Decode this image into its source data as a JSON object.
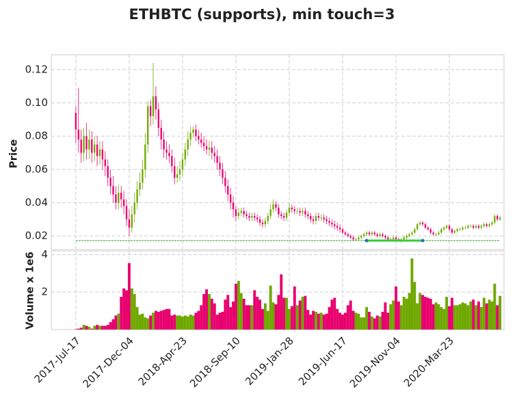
{
  "chart_data": {
    "type": "candlestick",
    "title": "ETHBTC (supports), min touch=3",
    "ylabel": "Price",
    "volume_label": "Volume x 1e6",
    "grid": true,
    "up_color": "#6fa800",
    "down_color": "#e8006e",
    "xlim": [
      -9.2,
      160.5
    ],
    "xticks": [
      {
        "value": 0,
        "label": "2017-Jul-17"
      },
      {
        "value": 20,
        "label": "2017-Dec-04"
      },
      {
        "value": 40,
        "label": "2018-Apr-23"
      },
      {
        "value": 60,
        "label": "2018-Sep-10"
      },
      {
        "value": 80,
        "label": "2019-Jan-28"
      },
      {
        "value": 100,
        "label": "2019-Jun-17"
      },
      {
        "value": 120,
        "label": "2019-Nov-04"
      },
      {
        "value": 140,
        "label": "2020-Mar-23"
      }
    ],
    "ylim": [
      0.0118,
      0.129
    ],
    "yticks": [
      0.02,
      0.04,
      0.06,
      0.08,
      {
        "value": 0.1,
        "label": "0.10"
      },
      0.12
    ],
    "volume_ylim": [
      0,
      4.2
    ],
    "volume_yticks": [
      2,
      4
    ],
    "open": [
      0.094,
      0.084,
      0.078,
      0.07,
      0.08,
      0.072,
      0.078,
      0.07,
      0.075,
      0.068,
      0.072,
      0.066,
      0.062,
      0.055,
      0.05,
      0.045,
      0.04,
      0.046,
      0.042,
      0.038,
      0.03,
      0.025,
      0.033,
      0.04,
      0.048,
      0.052,
      0.06,
      0.075,
      0.098,
      0.092,
      0.104,
      0.096,
      0.085,
      0.078,
      0.072,
      0.07,
      0.068,
      0.062,
      0.055,
      0.057,
      0.06,
      0.066,
      0.072,
      0.078,
      0.082,
      0.084,
      0.08,
      0.078,
      0.076,
      0.074,
      0.072,
      0.073,
      0.07,
      0.068,
      0.064,
      0.06,
      0.055,
      0.05,
      0.045,
      0.04,
      0.036,
      0.032,
      0.034,
      0.035,
      0.033,
      0.032,
      0.031,
      0.032,
      0.031,
      0.03,
      0.028,
      0.027,
      0.029,
      0.032,
      0.036,
      0.039,
      0.037,
      0.033,
      0.032,
      0.031,
      0.034,
      0.037,
      0.036,
      0.035,
      0.035,
      0.034,
      0.035,
      0.033,
      0.032,
      0.03,
      0.029,
      0.032,
      0.031,
      0.031,
      0.03,
      0.029,
      0.028,
      0.027,
      0.026,
      0.025,
      0.024,
      0.022,
      0.021,
      0.02,
      0.019,
      0.018,
      0.018,
      0.019,
      0.02,
      0.021,
      0.022,
      0.021,
      0.022,
      0.021,
      0.02,
      0.021,
      0.02,
      0.019,
      0.018,
      0.018,
      0.019,
      0.018,
      0.017,
      0.018,
      0.019,
      0.02,
      0.021,
      0.022,
      0.024,
      0.027,
      0.028,
      0.027,
      0.025,
      0.024,
      0.022,
      0.021,
      0.021,
      0.022,
      0.024,
      0.025,
      0.026,
      0.024,
      0.022,
      0.023,
      0.024,
      0.024,
      0.025,
      0.025,
      0.026,
      0.026,
      0.025,
      0.026,
      0.025,
      0.026,
      0.027,
      0.026,
      0.027,
      0.028,
      0.032,
      0.03
    ],
    "high": [
      0.098,
      0.109,
      0.084,
      0.085,
      0.088,
      0.084,
      0.083,
      0.08,
      0.08,
      0.077,
      0.077,
      0.071,
      0.066,
      0.06,
      0.056,
      0.05,
      0.051,
      0.05,
      0.047,
      0.042,
      0.036,
      0.038,
      0.046,
      0.053,
      0.058,
      0.066,
      0.082,
      0.101,
      0.102,
      0.124,
      0.11,
      0.1,
      0.09,
      0.083,
      0.077,
      0.075,
      0.072,
      0.067,
      0.062,
      0.065,
      0.07,
      0.076,
      0.083,
      0.086,
      0.086,
      0.087,
      0.084,
      0.082,
      0.08,
      0.078,
      0.077,
      0.077,
      0.074,
      0.072,
      0.068,
      0.064,
      0.059,
      0.054,
      0.049,
      0.044,
      0.038,
      0.037,
      0.037,
      0.037,
      0.035,
      0.034,
      0.034,
      0.034,
      0.033,
      0.032,
      0.03,
      0.031,
      0.034,
      0.039,
      0.042,
      0.041,
      0.039,
      0.035,
      0.034,
      0.036,
      0.04,
      0.039,
      0.038,
      0.037,
      0.037,
      0.037,
      0.037,
      0.035,
      0.034,
      0.032,
      0.034,
      0.034,
      0.033,
      0.033,
      0.032,
      0.031,
      0.03,
      0.029,
      0.028,
      0.027,
      0.025,
      0.023,
      0.022,
      0.021,
      0.02,
      0.019,
      0.02,
      0.021,
      0.022,
      0.023,
      0.023,
      0.023,
      0.023,
      0.022,
      0.022,
      0.022,
      0.021,
      0.02,
      0.019,
      0.02,
      0.02,
      0.019,
      0.019,
      0.02,
      0.021,
      0.022,
      0.023,
      0.025,
      0.028,
      0.029,
      0.029,
      0.028,
      0.026,
      0.025,
      0.023,
      0.022,
      0.023,
      0.025,
      0.026,
      0.027,
      0.027,
      0.025,
      0.024,
      0.025,
      0.025,
      0.026,
      0.026,
      0.027,
      0.027,
      0.027,
      0.027,
      0.027,
      0.027,
      0.028,
      0.028,
      0.028,
      0.029,
      0.033,
      0.033,
      0.032
    ],
    "low": [
      0.076,
      0.07,
      0.064,
      0.065,
      0.066,
      0.066,
      0.064,
      0.065,
      0.062,
      0.063,
      0.06,
      0.056,
      0.05,
      0.045,
      0.04,
      0.036,
      0.036,
      0.037,
      0.033,
      0.026,
      0.02,
      0.022,
      0.028,
      0.036,
      0.044,
      0.048,
      0.055,
      0.07,
      0.086,
      0.087,
      0.09,
      0.08,
      0.072,
      0.067,
      0.066,
      0.064,
      0.058,
      0.051,
      0.052,
      0.053,
      0.056,
      0.062,
      0.068,
      0.074,
      0.079,
      0.077,
      0.075,
      0.073,
      0.071,
      0.069,
      0.068,
      0.066,
      0.064,
      0.06,
      0.056,
      0.051,
      0.046,
      0.041,
      0.036,
      0.031,
      0.029,
      0.03,
      0.032,
      0.031,
      0.03,
      0.029,
      0.029,
      0.029,
      0.028,
      0.026,
      0.025,
      0.025,
      0.027,
      0.03,
      0.034,
      0.035,
      0.031,
      0.03,
      0.029,
      0.029,
      0.032,
      0.034,
      0.033,
      0.033,
      0.032,
      0.032,
      0.031,
      0.03,
      0.028,
      0.027,
      0.027,
      0.029,
      0.029,
      0.028,
      0.027,
      0.026,
      0.025,
      0.024,
      0.023,
      0.022,
      0.021,
      0.02,
      0.019,
      0.018,
      0.017,
      0.017,
      0.017,
      0.018,
      0.019,
      0.02,
      0.02,
      0.02,
      0.02,
      0.019,
      0.019,
      0.019,
      0.018,
      0.017,
      0.017,
      0.017,
      0.017,
      0.017,
      0.016,
      0.017,
      0.018,
      0.019,
      0.02,
      0.021,
      0.023,
      0.026,
      0.026,
      0.024,
      0.023,
      0.021,
      0.02,
      0.02,
      0.02,
      0.021,
      0.023,
      0.024,
      0.023,
      0.021,
      0.021,
      0.022,
      0.023,
      0.023,
      0.024,
      0.024,
      0.025,
      0.024,
      0.024,
      0.024,
      0.024,
      0.025,
      0.025,
      0.025,
      0.026,
      0.027,
      0.029,
      0.029
    ],
    "close": [
      0.084,
      0.078,
      0.07,
      0.08,
      0.072,
      0.078,
      0.07,
      0.075,
      0.068,
      0.072,
      0.066,
      0.062,
      0.055,
      0.05,
      0.045,
      0.04,
      0.046,
      0.042,
      0.038,
      0.03,
      0.025,
      0.033,
      0.04,
      0.048,
      0.052,
      0.06,
      0.075,
      0.098,
      0.092,
      0.104,
      0.096,
      0.085,
      0.078,
      0.072,
      0.07,
      0.068,
      0.062,
      0.055,
      0.057,
      0.06,
      0.066,
      0.072,
      0.078,
      0.082,
      0.084,
      0.08,
      0.078,
      0.076,
      0.074,
      0.072,
      0.073,
      0.07,
      0.068,
      0.064,
      0.06,
      0.055,
      0.05,
      0.045,
      0.04,
      0.036,
      0.032,
      0.034,
      0.035,
      0.033,
      0.032,
      0.031,
      0.032,
      0.031,
      0.03,
      0.028,
      0.027,
      0.029,
      0.032,
      0.036,
      0.039,
      0.037,
      0.033,
      0.032,
      0.031,
      0.034,
      0.037,
      0.036,
      0.035,
      0.035,
      0.034,
      0.035,
      0.033,
      0.032,
      0.03,
      0.029,
      0.032,
      0.031,
      0.031,
      0.03,
      0.029,
      0.028,
      0.027,
      0.026,
      0.025,
      0.024,
      0.022,
      0.021,
      0.02,
      0.019,
      0.018,
      0.018,
      0.019,
      0.02,
      0.021,
      0.022,
      0.021,
      0.022,
      0.021,
      0.02,
      0.021,
      0.02,
      0.019,
      0.018,
      0.018,
      0.019,
      0.018,
      0.017,
      0.018,
      0.019,
      0.02,
      0.021,
      0.022,
      0.024,
      0.027,
      0.028,
      0.027,
      0.025,
      0.024,
      0.022,
      0.021,
      0.021,
      0.022,
      0.024,
      0.025,
      0.026,
      0.024,
      0.022,
      0.023,
      0.024,
      0.024,
      0.025,
      0.025,
      0.026,
      0.026,
      0.025,
      0.026,
      0.025,
      0.026,
      0.027,
      0.026,
      0.027,
      0.028,
      0.032,
      0.03,
      0.031
    ],
    "volume": [
      0.02,
      0.05,
      0.1,
      0.25,
      0.2,
      0.15,
      0.05,
      0.2,
      0.25,
      0.2,
      0.2,
      0.2,
      0.25,
      0.4,
      0.55,
      0.75,
      0.85,
      1.75,
      2.2,
      2.1,
      3.55,
      2.2,
      1.9,
      1.2,
      0.8,
      0.85,
      0.65,
      0.6,
      0.75,
      0.9,
      1.0,
      0.95,
      1.0,
      1.05,
      1.1,
      1.1,
      0.75,
      0.8,
      0.75,
      0.75,
      0.7,
      0.75,
      0.7,
      0.8,
      0.75,
      0.9,
      1.0,
      1.3,
      1.9,
      2.15,
      1.9,
      1.65,
      1.4,
      0.8,
      0.9,
      0.95,
      1.6,
      1.85,
      1.2,
      1.5,
      2.45,
      2.6,
      1.95,
      1.65,
      1.3,
      1.3,
      1.3,
      2.1,
      1.75,
      1.6,
      1.1,
      1.4,
      1.0,
      2.35,
      1.45,
      1.35,
      1.85,
      2.95,
      1.7,
      1.7,
      1.1,
      1.25,
      2.3,
      1.3,
      1.55,
      1.75,
      1.8,
      1.05,
      0.8,
      1.0,
      0.95,
      0.85,
      0.9,
      0.8,
      0.85,
      1.2,
      1.6,
      1.7,
      1.1,
      0.9,
      0.8,
      0.9,
      1.3,
      1.55,
      1.0,
      0.9,
      0.85,
      0.65,
      0.65,
      1.2,
      0.95,
      0.7,
      0.6,
      0.75,
      0.7,
      0.95,
      1.45,
      0.9,
      1.35,
      1.55,
      2.3,
      1.5,
      1.3,
      1.75,
      1.65,
      1.95,
      3.8,
      2.55,
      1.4,
      1.95,
      1.85,
      1.75,
      1.7,
      1.65,
      1.35,
      1.45,
      1.35,
      1.2,
      1.1,
      1.75,
      1.25,
      1.7,
      1.3,
      1.3,
      1.35,
      1.45,
      1.4,
      1.3,
      1.5,
      1.6,
      1.3,
      1.5,
      1.2,
      1.7,
      1.4,
      1.6,
      1.5,
      2.45,
      1.3,
      1.8
    ],
    "support": {
      "value": 0.0172,
      "color": "#2ca02c",
      "touch_x": [
        109,
        130
      ],
      "touch_color": "#33cc33"
    }
  }
}
